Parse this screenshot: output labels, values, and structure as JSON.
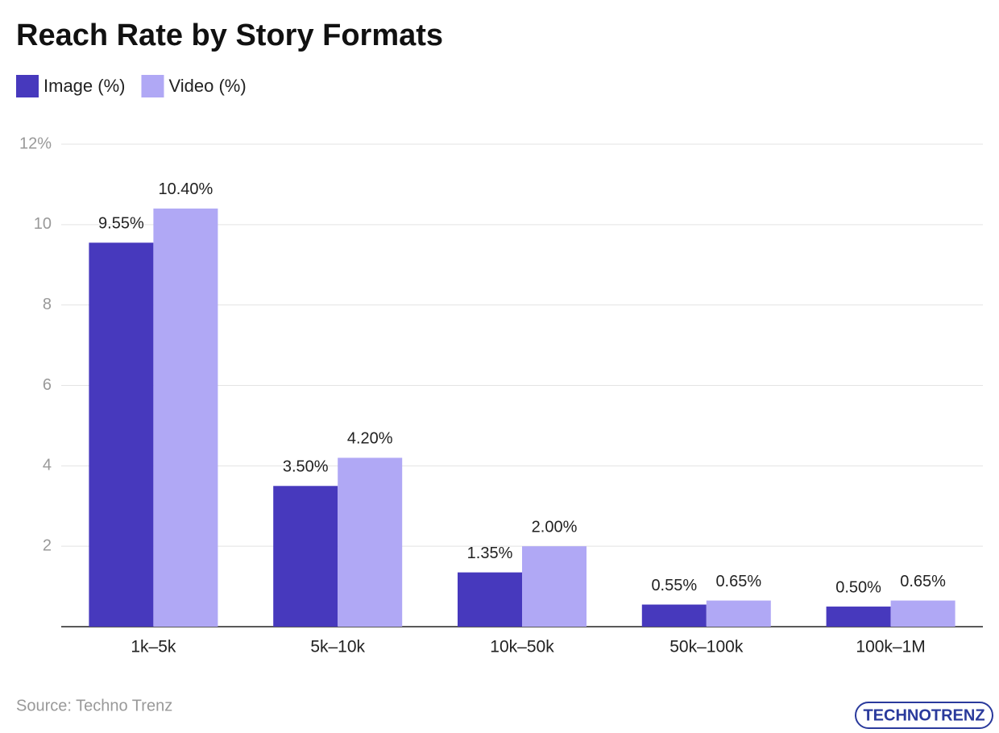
{
  "chart_data": {
    "type": "bar",
    "title": "Reach Rate by Story Formats",
    "categories": [
      "1k–5k",
      "5k–10k",
      "10k–50k",
      "50k–100k",
      "100k–1M"
    ],
    "series": [
      {
        "name": "Image (%)",
        "color": "#4739bd",
        "values": [
          9.55,
          3.5,
          1.35,
          0.55,
          0.5
        ],
        "value_labels": [
          "9.55%",
          "3.50%",
          "1.35%",
          "0.55%",
          "0.50%"
        ]
      },
      {
        "name": "Video (%)",
        "color": "#b0a8f5",
        "values": [
          10.4,
          4.2,
          2.0,
          0.65,
          0.65
        ],
        "value_labels": [
          "10.40%",
          "4.20%",
          "2.00%",
          "0.65%",
          "0.65%"
        ]
      }
    ],
    "ylim": [
      0,
      12
    ],
    "yticks": [
      2,
      4,
      6,
      8,
      10,
      {
        "value": 12,
        "label": "12%"
      }
    ],
    "grid": true,
    "legend": "top-left",
    "source": "Source: Techno Trenz",
    "logo": "TECHNOTRENZ"
  }
}
